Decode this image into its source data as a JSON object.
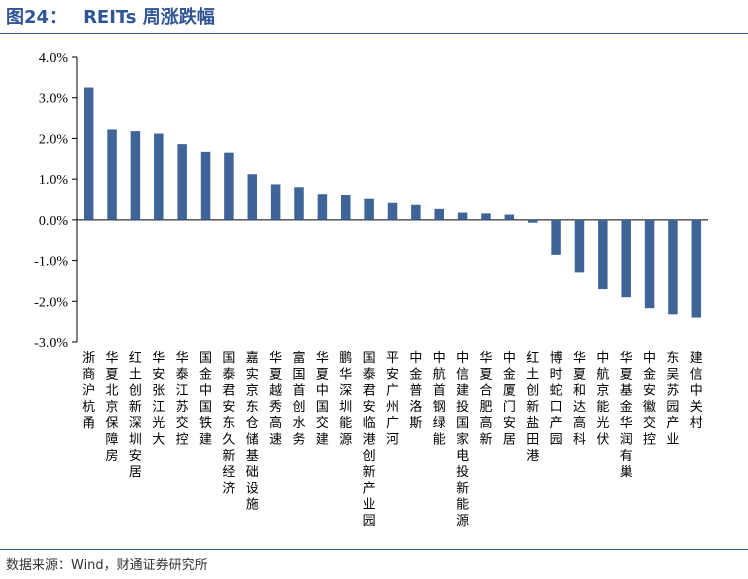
{
  "header": {
    "fig_no": "图24：",
    "title": "REITs 周涨跌幅"
  },
  "footer": {
    "source": "数据来源：Wind，财通证券研究所"
  },
  "chart_data": {
    "type": "bar",
    "title": "REITs 周涨跌幅",
    "xlabel": "",
    "ylabel": "",
    "ylim": [
      -3.0,
      4.0
    ],
    "yticks": [
      "4.0%",
      "3.0%",
      "2.0%",
      "1.0%",
      "0.0%",
      "-1.0%",
      "-2.0%",
      "-3.0%"
    ],
    "grid": false,
    "legend": "none",
    "bar_color": "#3f6598",
    "categories": [
      "浙商沪杭甬",
      "华夏北京保障房",
      "红土创新深圳安居",
      "华安张江光大",
      "华泰江苏交控",
      "国金中国铁建",
      "国泰君安东久新经济",
      "嘉实京东仓储基础设施",
      "华夏越秀高速",
      "富国首创水务",
      "华夏中国交建",
      "鹏华深圳能源",
      "国泰君安临港创新产业园",
      "平安广州广河",
      "中金普洛斯",
      "中航首钢绿能",
      "中信建投国家电投新能源",
      "华夏合肥高新",
      "中金厦门安居",
      "红土创新盐田港",
      "博时蛇口产园",
      "华夏和达高科",
      "中航京能光伏",
      "华夏基金华润有巢",
      "中金安徽交控",
      "东吴苏园产业",
      "建信中关村"
    ],
    "values": [
      3.25,
      2.22,
      2.18,
      2.12,
      1.86,
      1.67,
      1.65,
      1.12,
      0.87,
      0.8,
      0.63,
      0.61,
      0.52,
      0.42,
      0.37,
      0.27,
      0.18,
      0.16,
      0.13,
      -0.07,
      -0.86,
      -1.29,
      -1.7,
      -1.9,
      -2.17,
      -2.32,
      -2.4
    ]
  }
}
